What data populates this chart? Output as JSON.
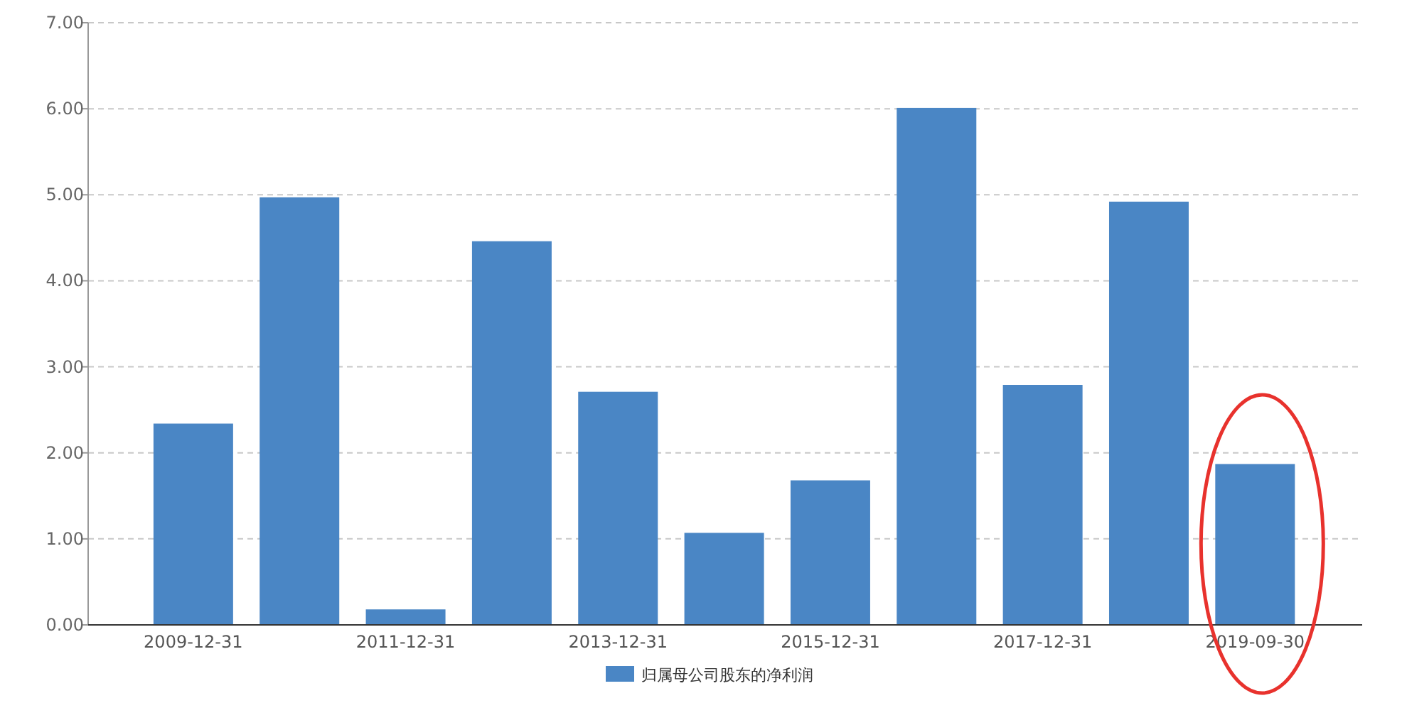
{
  "chart_data": {
    "type": "bar",
    "categories": [
      "2009-12-31",
      null,
      "2011-12-31",
      null,
      "2013-12-31",
      null,
      "2015-12-31",
      null,
      "2017-12-31",
      null,
      "2019-09-30"
    ],
    "series": [
      {
        "name": "归属母公司股东的净利润",
        "color": "#4a86c5",
        "values": [
          2.34,
          4.97,
          0.18,
          4.46,
          2.71,
          1.07,
          1.68,
          6.01,
          2.79,
          4.92,
          1.87
        ]
      }
    ],
    "ylim": [
      0,
      7
    ],
    "yticks": [
      {
        "value": 0,
        "label": "0.00"
      },
      {
        "value": 1,
        "label": "1.00"
      },
      {
        "value": 2,
        "label": "2.00"
      },
      {
        "value": 3,
        "label": "3.00"
      },
      {
        "value": 4,
        "label": "4.00"
      },
      {
        "value": 5,
        "label": "5.00"
      },
      {
        "value": 6,
        "label": "6.00"
      },
      {
        "value": 7,
        "label": "7.00"
      }
    ],
    "grid": "y",
    "legend": "bottom"
  }
}
